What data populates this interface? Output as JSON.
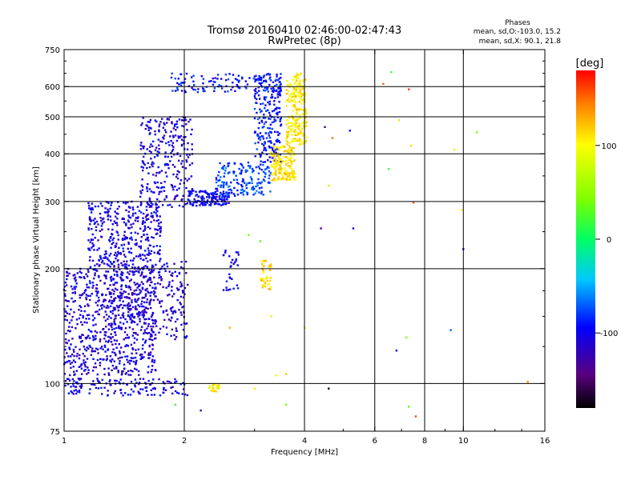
{
  "chart_data": {
    "type": "scatter",
    "title": "Tromsø 20160410 02:46:00-02:47:43",
    "subtitle": "RwPretec (8p)",
    "xlabel": "Frequency [MHz]",
    "ylabel": "Stationary phase Virtual Height [km]",
    "x_scale": "log",
    "y_scale": "log",
    "xlim": [
      1,
      16
    ],
    "ylim": [
      75,
      750
    ],
    "x_ticks": [
      1,
      2,
      4,
      6,
      8,
      10,
      16
    ],
    "x_tick_labels": [
      "1",
      "2",
      "4",
      "6",
      "8",
      "10",
      "16"
    ],
    "y_ticks": [
      75,
      100,
      200,
      300,
      400,
      500,
      600,
      750
    ],
    "y_tick_labels": [
      "75",
      "100",
      "200",
      "300",
      "400",
      "500",
      "600",
      "750"
    ],
    "x_gridlines": [
      2,
      4,
      6,
      8,
      10
    ],
    "y_gridlines": [
      100,
      200,
      300,
      400,
      500,
      600
    ],
    "grid": true,
    "phase_legend": {
      "title": "Phases",
      "line1": "mean, sd,O:-103.0, 15.2",
      "line2": "mean, sd,X:  90.1, 21.8"
    },
    "colorbar": {
      "label": "[deg]",
      "range": [
        -180,
        180
      ],
      "ticks": [
        100,
        0,
        -100
      ],
      "tick_labels": [
        "100",
        "0",
        "-100"
      ]
    },
    "clusters": [
      {
        "f": [
          1.0,
          2.05
        ],
        "h": [
          93,
          103
        ],
        "phase": -105,
        "n": 140
      },
      {
        "f": [
          1.0,
          1.7
        ],
        "h": [
          105,
          200
        ],
        "phase": -108,
        "n": 650
      },
      {
        "f": [
          1.3,
          2.05
        ],
        "h": [
          130,
          210
        ],
        "phase": -110,
        "n": 300
      },
      {
        "f": [
          1.15,
          1.75
        ],
        "h": [
          200,
          300
        ],
        "phase": -105,
        "n": 380
      },
      {
        "f": [
          1.55,
          2.1
        ],
        "h": [
          290,
          500
        ],
        "phase": -105,
        "n": 260
      },
      {
        "f": [
          2.05,
          2.6
        ],
        "h": [
          292,
          320
        ],
        "phase": -98,
        "n": 150
      },
      {
        "f": [
          2.4,
          3.3
        ],
        "h": [
          310,
          380
        ],
        "phase": -75,
        "n": 160
      },
      {
        "f": [
          3.0,
          3.5
        ],
        "h": [
          380,
          640
        ],
        "phase": -90,
        "n": 220
      },
      {
        "f": [
          3.3,
          3.8
        ],
        "h": [
          340,
          420
        ],
        "phase": 110,
        "n": 160
      },
      {
        "f": [
          3.6,
          4.05
        ],
        "h": [
          420,
          650
        ],
        "phase": 105,
        "n": 220
      },
      {
        "f": [
          1.85,
          3.5
        ],
        "h": [
          580,
          650
        ],
        "phase": -90,
        "n": 120
      },
      {
        "f": [
          3.1,
          3.3
        ],
        "h": [
          175,
          210
        ],
        "phase": 115,
        "n": 40
      },
      {
        "f": [
          2.3,
          2.45
        ],
        "h": [
          95,
          100
        ],
        "phase": 100,
        "n": 20
      },
      {
        "f": [
          2.5,
          2.75
        ],
        "h": [
          175,
          225
        ],
        "phase": -100,
        "n": 30
      }
    ],
    "sparse_points": [
      {
        "f": 4.5,
        "h": 470,
        "phase": -140
      },
      {
        "f": 4.7,
        "h": 440,
        "phase": 150
      },
      {
        "f": 5.2,
        "h": 460,
        "phase": -100
      },
      {
        "f": 6.3,
        "h": 610,
        "phase": 150
      },
      {
        "f": 6.5,
        "h": 365,
        "phase": 20
      },
      {
        "f": 6.9,
        "h": 490,
        "phase": 110
      },
      {
        "f": 7.3,
        "h": 590,
        "phase": 160
      },
      {
        "f": 7.4,
        "h": 420,
        "phase": 110
      },
      {
        "f": 7.5,
        "h": 298,
        "phase": 155
      },
      {
        "f": 9.5,
        "h": 410,
        "phase": 110
      },
      {
        "f": 9.9,
        "h": 285,
        "phase": 95
      },
      {
        "f": 10.0,
        "h": 225,
        "phase": -100
      },
      {
        "f": 10.8,
        "h": 455,
        "phase": 40
      },
      {
        "f": 9.3,
        "h": 138,
        "phase": -70
      },
      {
        "f": 7.2,
        "h": 132,
        "phase": 40
      },
      {
        "f": 6.8,
        "h": 122,
        "phase": -100
      },
      {
        "f": 7.3,
        "h": 87,
        "phase": 30
      },
      {
        "f": 7.6,
        "h": 82,
        "phase": 160
      },
      {
        "f": 14.5,
        "h": 101,
        "phase": 140
      },
      {
        "f": 4.6,
        "h": 97,
        "phase": -180
      },
      {
        "f": 3.6,
        "h": 106,
        "phase": 120
      },
      {
        "f": 3.4,
        "h": 105,
        "phase": 90
      },
      {
        "f": 3.0,
        "h": 97,
        "phase": 110
      },
      {
        "f": 3.6,
        "h": 88,
        "phase": 40
      },
      {
        "f": 2.2,
        "h": 85,
        "phase": -120
      },
      {
        "f": 1.9,
        "h": 88,
        "phase": 20
      },
      {
        "f": 4.6,
        "h": 330,
        "phase": 110
      },
      {
        "f": 4.4,
        "h": 255,
        "phase": -130
      },
      {
        "f": 5.3,
        "h": 255,
        "phase": -110
      },
      {
        "f": 4.0,
        "h": 140,
        "phase": 110
      },
      {
        "f": 2.6,
        "h": 140,
        "phase": 130
      },
      {
        "f": 3.3,
        "h": 150,
        "phase": 110
      },
      {
        "f": 2.9,
        "h": 245,
        "phase": 40
      },
      {
        "f": 3.1,
        "h": 236,
        "phase": 30
      },
      {
        "f": 6.6,
        "h": 655,
        "phase": 20
      }
    ]
  }
}
